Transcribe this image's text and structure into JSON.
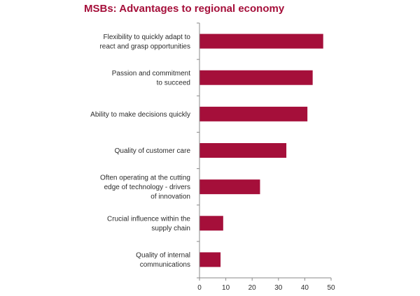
{
  "chart_data": {
    "type": "bar",
    "orientation": "horizontal",
    "title": "MSBs: Advantages to regional economy",
    "categories": [
      [
        "Flexibility to quickly adapt to",
        "react and grasp opportunities"
      ],
      [
        "Passion and commitment",
        "to succeed"
      ],
      [
        "Ability to make decisions quickly"
      ],
      [
        "Quality of customer care"
      ],
      [
        "Often operating at the cutting",
        "edge of technology - drivers",
        "of innovation"
      ],
      [
        "Crucial influence within the",
        "supply chain"
      ],
      [
        "Quality of internal",
        "communications"
      ]
    ],
    "values": [
      47,
      43,
      41,
      33,
      23,
      9,
      8
    ],
    "xlim": [
      0,
      50
    ],
    "xticks": [
      "0",
      "10",
      "20",
      "30",
      "40",
      "50"
    ],
    "bar_color": "#a50f3a",
    "grid": false
  }
}
